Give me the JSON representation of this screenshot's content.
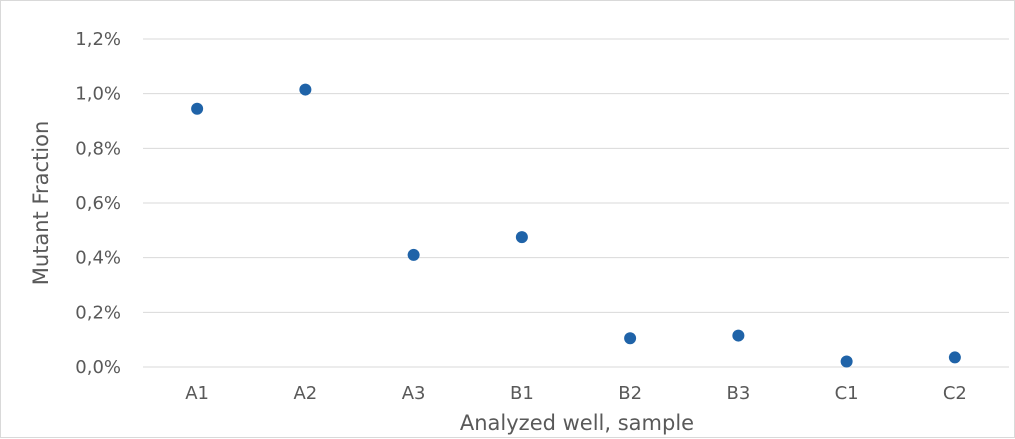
{
  "chart_data": {
    "type": "scatter",
    "title": "",
    "xlabel": "Analyzed  well, sample",
    "ylabel": "Mutant Fraction",
    "categories": [
      "A1",
      "A2",
      "A3",
      "B1",
      "B2",
      "B3",
      "C1",
      "C2"
    ],
    "series": [
      {
        "values": [
          0.945,
          1.015,
          0.41,
          0.475,
          0.105,
          0.115,
          0.02,
          0.035
        ],
        "color": "#1f63a8"
      }
    ],
    "ylim": [
      0,
      1.2
    ],
    "y_ticks": [
      0,
      0.2,
      0.4,
      0.6,
      0.8,
      1.0,
      1.2
    ],
    "y_tick_labels": [
      "0,0%",
      "0,2%",
      "0,4%",
      "0,6%",
      "0,8%",
      "1,0%",
      "1,2%"
    ],
    "grid": true,
    "legend": "none",
    "gridline_color": "#d9d9d9"
  }
}
